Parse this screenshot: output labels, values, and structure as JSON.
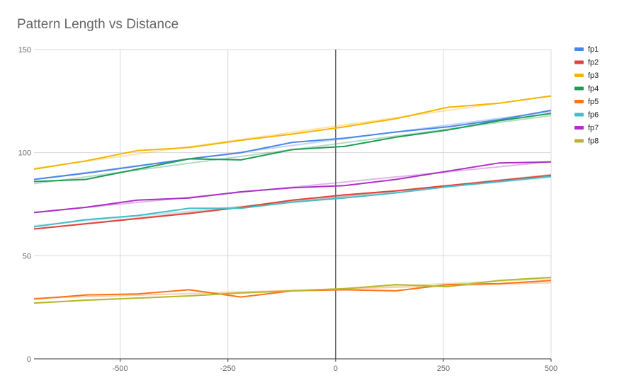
{
  "chart_data": {
    "type": "line",
    "title": "Pattern Length vs Distance",
    "xlabel": "",
    "ylabel": "",
    "xlim": [
      -700,
      500
    ],
    "ylim": [
      0,
      150
    ],
    "x_ticks": [
      "-500",
      "-250",
      "0",
      "250",
      "500"
    ],
    "x_tick_values": [
      -500,
      -250,
      0,
      250,
      500
    ],
    "y_ticks": [
      "0",
      "50",
      "100",
      "150"
    ],
    "y_tick_values": [
      0,
      50,
      100,
      150
    ],
    "grid": true,
    "zero_line": true,
    "legend_position": "right",
    "x": [
      -700,
      -580,
      -460,
      -340,
      -220,
      -100,
      20,
      140,
      260,
      380,
      500
    ],
    "series": [
      {
        "name": "fp1",
        "color": "#4a86e8",
        "values": [
          87,
          90,
          93.5,
          97,
          100,
          105,
          107,
          110,
          112.5,
          116,
          120.5
        ]
      },
      {
        "name": "fp2",
        "color": "#e0433a",
        "values": [
          63,
          65.5,
          68,
          70.5,
          73.5,
          77,
          79.5,
          81.5,
          84,
          86.5,
          89
        ]
      },
      {
        "name": "fp3",
        "color": "#f4b400",
        "values": [
          92,
          96,
          101,
          102.5,
          106,
          109,
          112.5,
          116.5,
          122,
          124,
          127.5
        ]
      },
      {
        "name": "fp4",
        "color": "#1e9c53",
        "values": [
          86,
          87,
          92,
          97,
          96.5,
          101.5,
          103,
          107.5,
          111,
          115.5,
          119
        ]
      },
      {
        "name": "fp5",
        "color": "#ff7216",
        "values": [
          29,
          31,
          31.5,
          33.5,
          30,
          33,
          33.5,
          33,
          36,
          36.5,
          38
        ]
      },
      {
        "name": "fp6",
        "color": "#46bdc6",
        "values": [
          64,
          67.5,
          69.5,
          73,
          73,
          76,
          78,
          80.5,
          83.5,
          86,
          88.5
        ]
      },
      {
        "name": "fp7",
        "color": "#ab30c4",
        "values": [
          71,
          73.5,
          77,
          78,
          81,
          83,
          84,
          87,
          91,
          95,
          95.5
        ]
      },
      {
        "name": "fp8",
        "color": "#b5b82c",
        "values": [
          27,
          28.5,
          29.5,
          30.5,
          32,
          33,
          34,
          36,
          35,
          38,
          39.5
        ]
      }
    ]
  }
}
